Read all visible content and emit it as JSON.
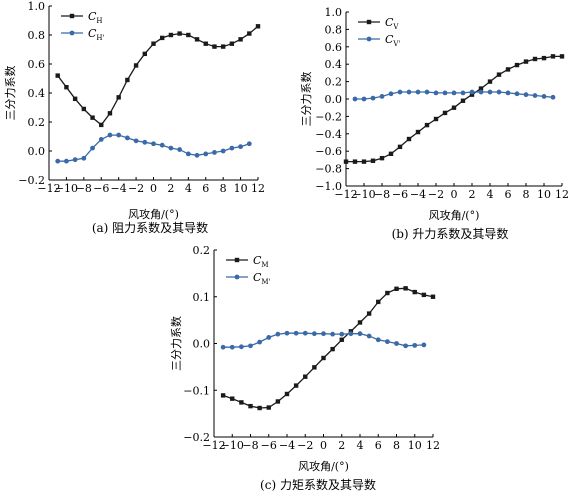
{
  "colors": {
    "series_1": "#1a1a1a",
    "series_2": "#3a6aa8",
    "axis": "#000000"
  },
  "chart_data": [
    {
      "type": "line",
      "caption": "(a) 阻力系数及其导数",
      "xlabel": "风攻角/(°)",
      "ylabel": "三分力系数",
      "xlim": [
        -12,
        12
      ],
      "ylim": [
        -0.2,
        1.0
      ],
      "xticks": [
        "−12",
        "−10",
        "−8",
        "−6",
        "−4",
        "−2",
        "0",
        "2",
        "4",
        "6",
        "8",
        "10",
        "12"
      ],
      "yticks": [
        "−0.2",
        "0.0",
        "0.2",
        "0.4",
        "0.6",
        "0.8",
        "1.0"
      ],
      "legend": {
        "placement": "top-left"
      },
      "series": [
        {
          "name": "C",
          "sub": "H",
          "marker": "square",
          "x": [
            -11,
            -10,
            -9,
            -8,
            -7,
            -6,
            -5,
            -4,
            -3,
            -2,
            -1,
            0,
            1,
            2,
            3,
            4,
            5,
            6,
            7,
            8,
            9,
            10,
            11,
            12
          ],
          "y": [
            0.52,
            0.44,
            0.36,
            0.29,
            0.23,
            0.18,
            0.26,
            0.37,
            0.49,
            0.59,
            0.67,
            0.74,
            0.78,
            0.8,
            0.81,
            0.8,
            0.77,
            0.74,
            0.72,
            0.72,
            0.74,
            0.77,
            0.81,
            0.86
          ]
        },
        {
          "name": "C",
          "sub": "H'",
          "marker": "circle",
          "x": [
            -11,
            -10,
            -9,
            -8,
            -7,
            -6,
            -5,
            -4,
            -3,
            -2,
            -1,
            0,
            1,
            2,
            3,
            4,
            5,
            6,
            7,
            8,
            9,
            10,
            11
          ],
          "y": [
            -0.07,
            -0.07,
            -0.06,
            -0.05,
            0.02,
            0.08,
            0.11,
            0.11,
            0.09,
            0.07,
            0.06,
            0.05,
            0.04,
            0.02,
            0.01,
            -0.02,
            -0.03,
            -0.02,
            -0.01,
            0.0,
            0.02,
            0.03,
            0.05
          ]
        }
      ]
    },
    {
      "type": "line",
      "caption": "(b) 升力系数及其导数",
      "xlabel": "风攻角/(°)",
      "ylabel": "三分力系数",
      "xlim": [
        -12,
        12
      ],
      "ylim": [
        -1.0,
        1.0
      ],
      "xticks": [
        "−12",
        "−10",
        "−8",
        "−6",
        "−4",
        "−2",
        "0",
        "2",
        "4",
        "6",
        "8",
        "10",
        "12"
      ],
      "yticks": [
        "−1.0",
        "−0.8",
        "−0.6",
        "−0.4",
        "−0.2",
        "0.0",
        "0.2",
        "0.4",
        "0.6",
        "0.8",
        "1.0"
      ],
      "legend": {
        "placement": "top-left"
      },
      "series": [
        {
          "name": "C",
          "sub": "V",
          "marker": "square",
          "x": [
            -12,
            -11,
            -10,
            -9,
            -8,
            -7,
            -6,
            -5,
            -4,
            -3,
            -2,
            -1,
            0,
            1,
            2,
            3,
            4,
            5,
            6,
            7,
            8,
            9,
            10,
            11,
            12
          ],
          "y": [
            -0.72,
            -0.72,
            -0.72,
            -0.71,
            -0.68,
            -0.63,
            -0.55,
            -0.46,
            -0.38,
            -0.3,
            -0.23,
            -0.16,
            -0.1,
            -0.02,
            0.05,
            0.12,
            0.2,
            0.28,
            0.34,
            0.39,
            0.43,
            0.46,
            0.47,
            0.49,
            0.49
          ]
        },
        {
          "name": "C",
          "sub": "V'",
          "marker": "circle",
          "x": [
            -11,
            -10,
            -9,
            -8,
            -7,
            -6,
            -5,
            -4,
            -3,
            -2,
            -1,
            0,
            1,
            2,
            3,
            4,
            5,
            6,
            7,
            8,
            9,
            10,
            11
          ],
          "y": [
            0.0,
            0.0,
            0.01,
            0.03,
            0.06,
            0.08,
            0.08,
            0.08,
            0.08,
            0.07,
            0.07,
            0.07,
            0.07,
            0.08,
            0.08,
            0.08,
            0.08,
            0.07,
            0.06,
            0.05,
            0.04,
            0.03,
            0.02
          ]
        }
      ]
    },
    {
      "type": "line",
      "caption": "(c) 力矩系数及其导数",
      "xlabel": "风攻角/(°)",
      "ylabel": "三分力系数",
      "xlim": [
        -12,
        12
      ],
      "ylim": [
        -0.2,
        0.2
      ],
      "xticks": [
        "−12",
        "−10",
        "−8",
        "−6",
        "−4",
        "−2",
        "0",
        "2",
        "4",
        "6",
        "8",
        "10",
        "12"
      ],
      "yticks": [
        "−0.2",
        "−0.1",
        "0.0",
        "0.1",
        "0.2"
      ],
      "legend": {
        "placement": "top-left"
      },
      "series": [
        {
          "name": "C",
          "sub": "M",
          "marker": "square",
          "x": [
            -11,
            -10,
            -9,
            -8,
            -7,
            -6,
            -5,
            -4,
            -3,
            -2,
            -1,
            0,
            1,
            2,
            3,
            4,
            5,
            6,
            7,
            8,
            9,
            10,
            11,
            12
          ],
          "y": [
            -0.111,
            -0.118,
            -0.126,
            -0.134,
            -0.138,
            -0.137,
            -0.124,
            -0.108,
            -0.09,
            -0.071,
            -0.051,
            -0.031,
            -0.012,
            0.008,
            0.026,
            0.045,
            0.064,
            0.089,
            0.108,
            0.117,
            0.118,
            0.11,
            0.104,
            0.1
          ]
        },
        {
          "name": "C",
          "sub": "M'",
          "marker": "circle",
          "x": [
            -11,
            -10,
            -9,
            -8,
            -7,
            -6,
            -5,
            -4,
            -3,
            -2,
            -1,
            0,
            1,
            2,
            3,
            4,
            5,
            6,
            7,
            8,
            9,
            10,
            11
          ],
          "y": [
            -0.008,
            -0.008,
            -0.007,
            -0.005,
            0.003,
            0.013,
            0.02,
            0.022,
            0.022,
            0.022,
            0.021,
            0.021,
            0.02,
            0.02,
            0.021,
            0.021,
            0.016,
            0.008,
            0.004,
            0.0,
            -0.005,
            -0.004,
            -0.003
          ]
        }
      ]
    }
  ]
}
